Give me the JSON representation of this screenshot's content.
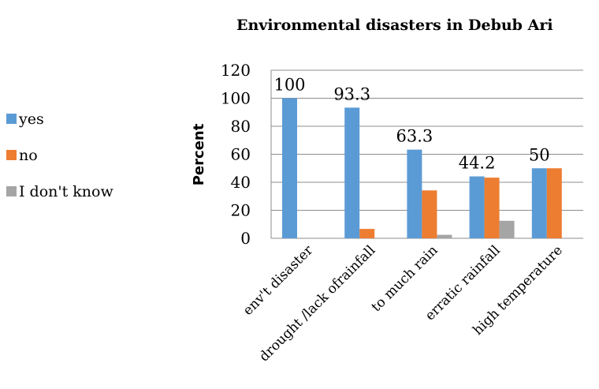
{
  "chart_data": {
    "type": "bar",
    "title": "Environmental disasters in Debub Ari",
    "ylabel": "Percent",
    "xlabel": "",
    "ylim": [
      0,
      120
    ],
    "yticks": [
      0,
      20,
      40,
      60,
      80,
      100,
      120
    ],
    "yticks_labels": [
      "0",
      "20",
      "40",
      "60",
      "80",
      "100",
      "120"
    ],
    "grid": true,
    "legend_position": "left",
    "categories": [
      "env't disaster",
      "drought /lack ofrainfall",
      "to much rain",
      "erratic rainfall",
      "high temperature"
    ],
    "series": [
      {
        "name": "yes",
        "color": "#5b9bd5",
        "values": [
          100,
          93.3,
          63.3,
          44.2,
          50
        ],
        "data_labels": [
          "100",
          "93.3",
          "63.3",
          "44.2",
          "50"
        ]
      },
      {
        "name": "no",
        "color": "#ed7d31",
        "values": [
          0,
          6.7,
          34.2,
          43.3,
          50
        ]
      },
      {
        "name": "I don't know",
        "color": "#a5a5a5",
        "values": [
          0,
          0,
          2.5,
          12.5,
          0
        ]
      }
    ]
  }
}
